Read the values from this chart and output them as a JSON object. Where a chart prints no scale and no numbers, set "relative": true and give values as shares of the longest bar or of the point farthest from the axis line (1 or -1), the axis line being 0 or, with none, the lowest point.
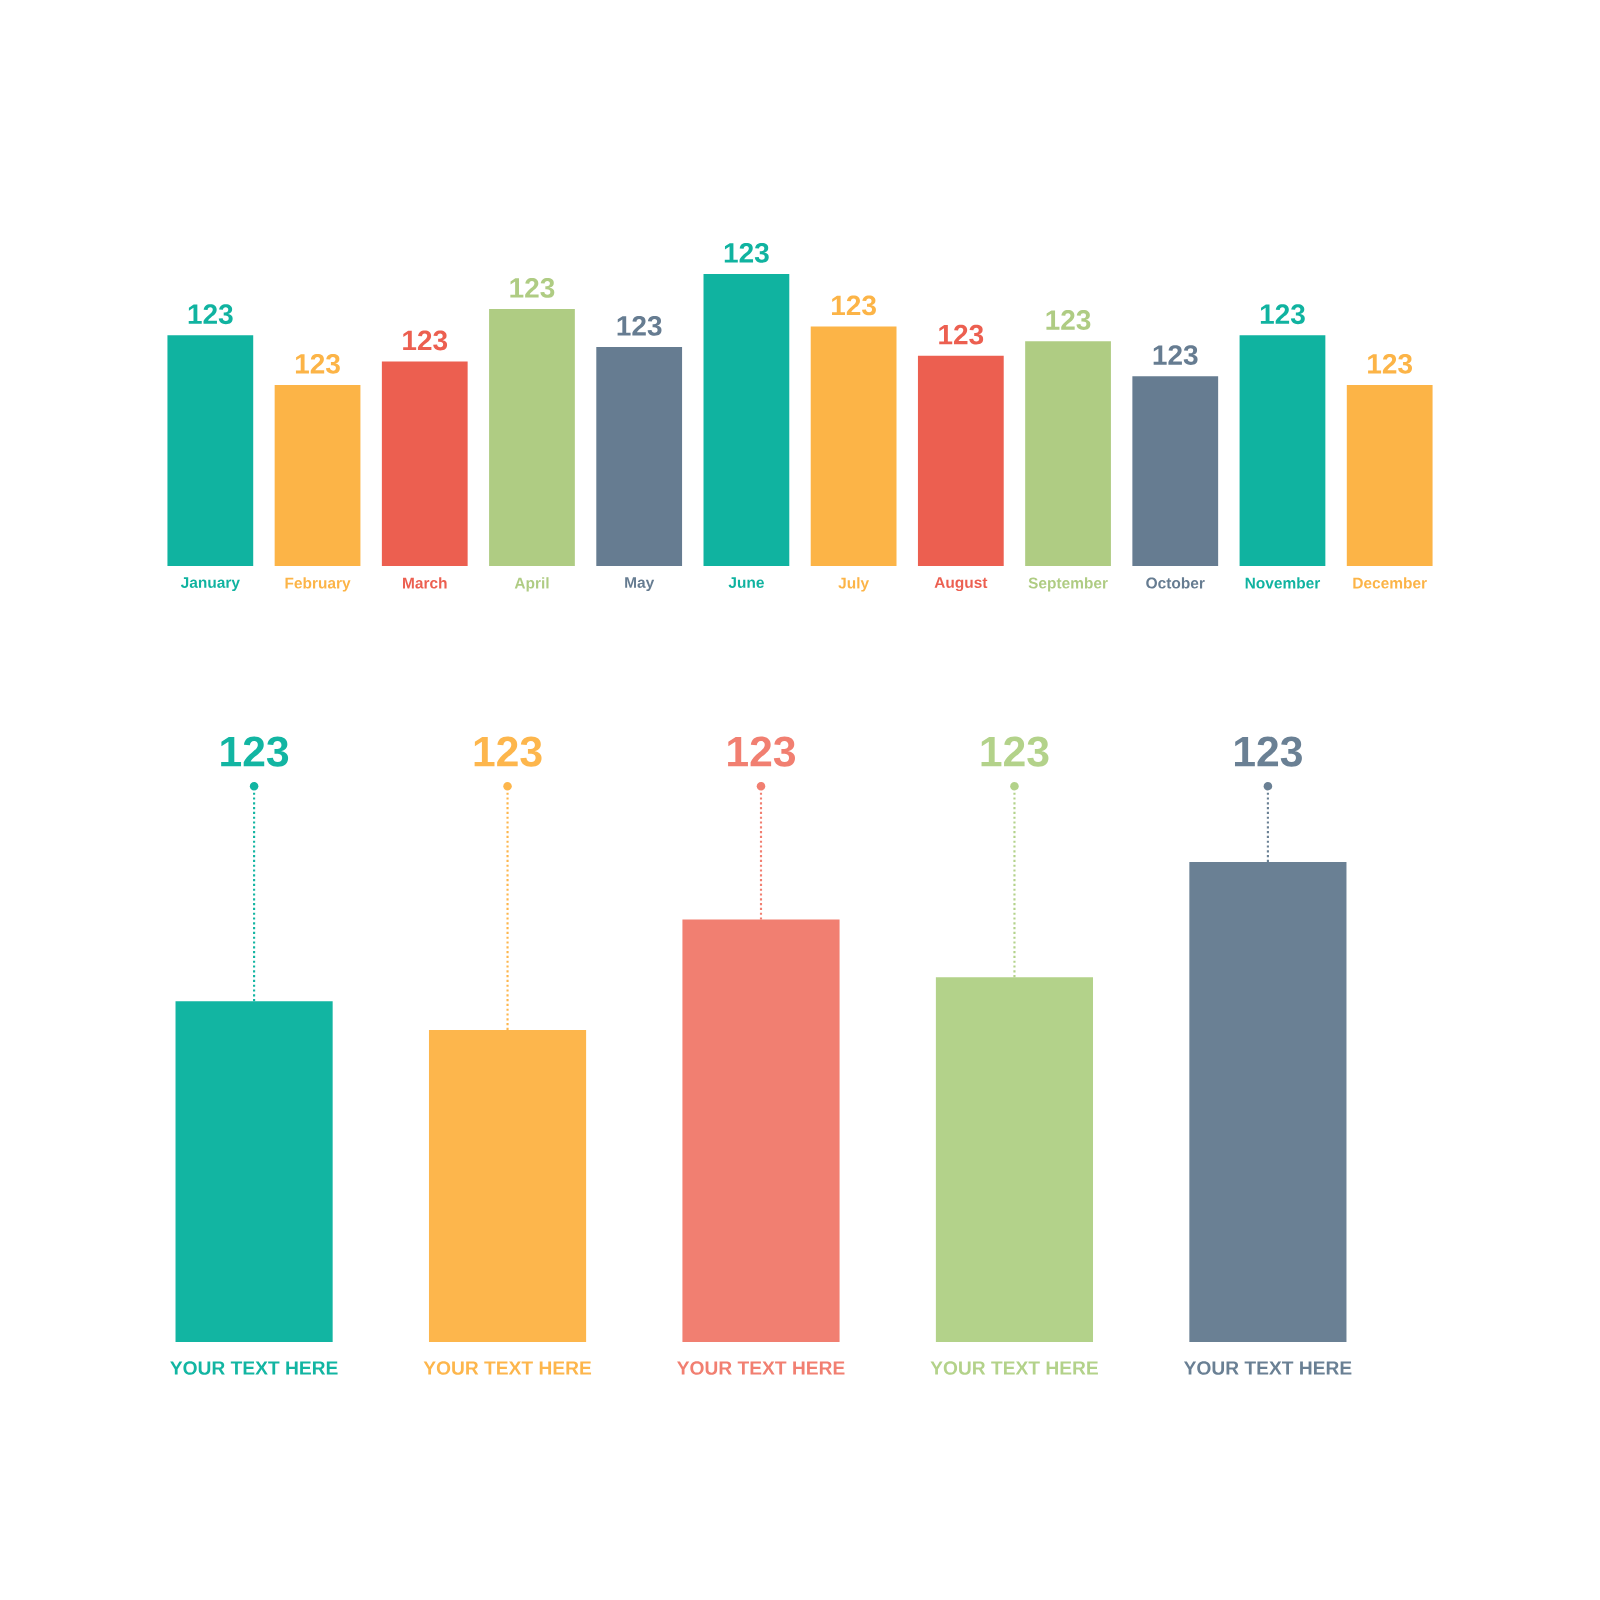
{
  "chart_data": [
    {
      "type": "bar",
      "relative": true,
      "categories": [
        "January",
        "February",
        "March",
        "April",
        "May",
        "June",
        "July",
        "August",
        "September",
        "October",
        "November",
        "December"
      ],
      "values": [
        0.79,
        0.62,
        0.7,
        0.88,
        0.75,
        1,
        0.82,
        0.72,
        0.77,
        0.65,
        0.79,
        0.62
      ],
      "colors": [
        "#10b3a0",
        "#fcb447",
        "#ec5f50",
        "#afcc83",
        "#667c91",
        "#10b3a0",
        "#fcb447",
        "#ec5f50",
        "#afcc83",
        "#667c91",
        "#10b3a0",
        "#fcb447"
      ],
      "annotations": [
        "123",
        "123",
        "123",
        "123",
        "123",
        "123",
        "123",
        "123",
        "123",
        "123",
        "123",
        "123"
      ]
    },
    {
      "type": "bar",
      "relative": true,
      "categories": [
        "YOUR TEXT HERE",
        "YOUR TEXT HERE",
        "YOUR TEXT HERE",
        "YOUR TEXT HERE",
        "YOUR TEXT HERE"
      ],
      "values": [
        0.71,
        0.65,
        0.88,
        0.76,
        1
      ],
      "colors": [
        "#12b5a2",
        "#fdb64c",
        "#f17f71",
        "#b3d28a",
        "#6a8094"
      ],
      "annotations": [
        "123",
        "123",
        "123",
        "123",
        "123"
      ]
    }
  ]
}
